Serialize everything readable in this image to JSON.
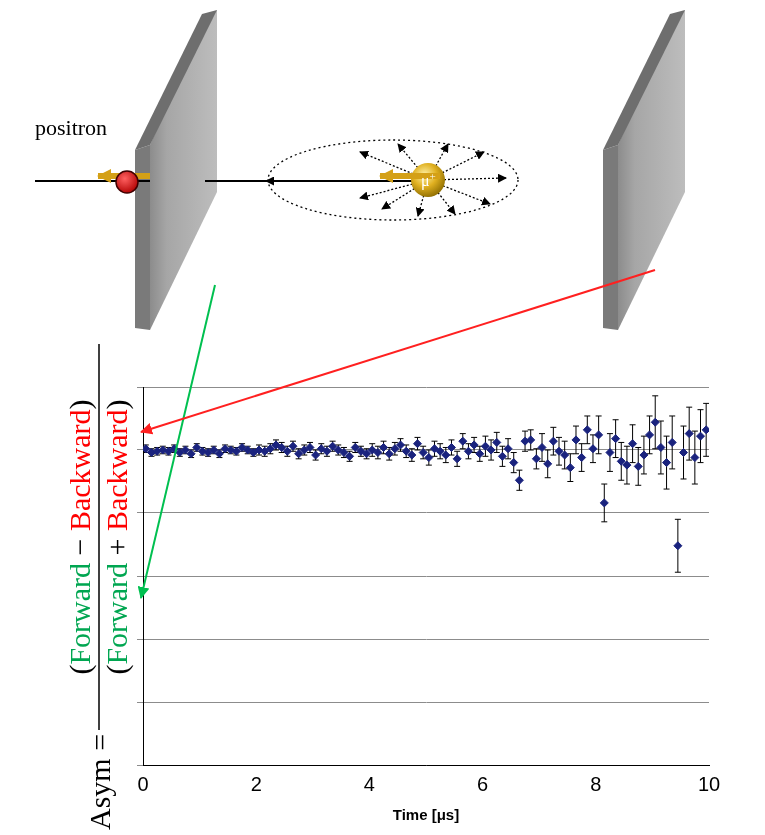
{
  "diagram": {
    "positron_label": "positron",
    "muon_label": {
      "text": "μ",
      "superscript": "+"
    }
  },
  "chart_data": {
    "type": "scatter",
    "x_label": "Time [μs]",
    "y_label": {
      "lhs": "Asym =",
      "numerator": [
        {
          "text": "(",
          "color": "#000000"
        },
        {
          "text": "Forward",
          "color": "#00a651"
        },
        {
          "text": " − ",
          "color": "#000000"
        },
        {
          "text": "Backward",
          "color": "#ff0000"
        },
        {
          "text": ")",
          "color": "#000000"
        }
      ],
      "denominator": [
        {
          "text": "(",
          "color": "#000000"
        },
        {
          "text": "Forward",
          "color": "#00a651"
        },
        {
          "text": " + ",
          "color": "#000000"
        },
        {
          "text": "Backward",
          "color": "#ff0000"
        },
        {
          "text": ")",
          "color": "#000000"
        }
      ]
    },
    "x": [
      0.05,
      0.15,
      0.25,
      0.35,
      0.45,
      0.55,
      0.65,
      0.75,
      0.85,
      0.95,
      1.05,
      1.15,
      1.25,
      1.35,
      1.45,
      1.55,
      1.65,
      1.75,
      1.85,
      1.95,
      2.05,
      2.15,
      2.25,
      2.35,
      2.45,
      2.55,
      2.65,
      2.75,
      2.85,
      2.95,
      3.05,
      3.15,
      3.25,
      3.35,
      3.45,
      3.55,
      3.65,
      3.75,
      3.85,
      3.95,
      4.05,
      4.15,
      4.25,
      4.35,
      4.45,
      4.55,
      4.65,
      4.75,
      4.85,
      4.95,
      5.05,
      5.15,
      5.25,
      5.35,
      5.45,
      5.55,
      5.65,
      5.75,
      5.85,
      5.95,
      6.05,
      6.15,
      6.25,
      6.35,
      6.45,
      6.55,
      6.65,
      6.75,
      6.85,
      6.95,
      7.05,
      7.15,
      7.25,
      7.35,
      7.45,
      7.55,
      7.65,
      7.75,
      7.85,
      7.95,
      8.05,
      8.15,
      8.25,
      8.35,
      8.45,
      8.55,
      8.65,
      8.75,
      8.85,
      8.95,
      9.05,
      9.15,
      9.25,
      9.35,
      9.45,
      9.55,
      9.65,
      9.75,
      9.85,
      9.95
    ],
    "values": [
      0.251,
      0.248,
      0.249,
      0.25,
      0.249,
      0.251,
      0.248,
      0.25,
      0.247,
      0.252,
      0.249,
      0.248,
      0.25,
      0.247,
      0.251,
      0.25,
      0.249,
      0.252,
      0.25,
      0.248,
      0.25,
      0.249,
      0.251,
      0.254,
      0.252,
      0.249,
      0.253,
      0.247,
      0.25,
      0.252,
      0.246,
      0.251,
      0.249,
      0.253,
      0.25,
      0.248,
      0.245,
      0.252,
      0.249,
      0.247,
      0.25,
      0.248,
      0.252,
      0.247,
      0.251,
      0.254,
      0.249,
      0.246,
      0.255,
      0.248,
      0.244,
      0.251,
      0.249,
      0.246,
      0.252,
      0.243,
      0.257,
      0.249,
      0.254,
      0.247,
      0.253,
      0.25,
      0.256,
      0.245,
      0.251,
      0.24,
      0.226,
      0.257,
      0.258,
      0.243,
      0.252,
      0.239,
      0.257,
      0.249,
      0.246,
      0.236,
      0.258,
      0.244,
      0.266,
      0.251,
      0.262,
      0.208,
      0.248,
      0.259,
      0.241,
      0.238,
      0.255,
      0.237,
      0.246,
      0.262,
      0.272,
      0.252,
      0.24,
      0.256,
      0.174,
      0.248,
      0.263,
      0.244,
      0.261,
      0.266
    ],
    "errors": [
      0.003,
      0.003,
      0.003,
      0.003,
      0.003,
      0.003,
      0.003,
      0.003,
      0.003,
      0.003,
      0.003,
      0.003,
      0.003,
      0.003,
      0.003,
      0.003,
      0.003,
      0.003,
      0.003,
      0.003,
      0.004,
      0.004,
      0.004,
      0.004,
      0.004,
      0.004,
      0.004,
      0.004,
      0.004,
      0.004,
      0.004,
      0.004,
      0.004,
      0.004,
      0.004,
      0.004,
      0.004,
      0.004,
      0.004,
      0.004,
      0.005,
      0.005,
      0.005,
      0.005,
      0.005,
      0.005,
      0.005,
      0.005,
      0.005,
      0.005,
      0.006,
      0.006,
      0.006,
      0.006,
      0.006,
      0.006,
      0.006,
      0.006,
      0.006,
      0.006,
      0.008,
      0.008,
      0.008,
      0.008,
      0.008,
      0.008,
      0.008,
      0.008,
      0.008,
      0.008,
      0.011,
      0.011,
      0.011,
      0.011,
      0.011,
      0.011,
      0.011,
      0.011,
      0.011,
      0.011,
      0.015,
      0.015,
      0.015,
      0.015,
      0.015,
      0.015,
      0.015,
      0.015,
      0.015,
      0.015,
      0.021,
      0.021,
      0.021,
      0.021,
      0.021,
      0.021,
      0.021,
      0.021,
      0.021,
      0.021
    ],
    "color": "#1a237e",
    "marker": "diamond",
    "xlim": [
      0,
      10
    ],
    "xticks": [
      0,
      2,
      4,
      6,
      8,
      10
    ],
    "ylim": [
      0,
      0.3
    ],
    "yticks": [
      0,
      0.05,
      0.1,
      0.15,
      0.2,
      0.25,
      0.3
    ],
    "grid": "y",
    "tick_labels": "x"
  }
}
